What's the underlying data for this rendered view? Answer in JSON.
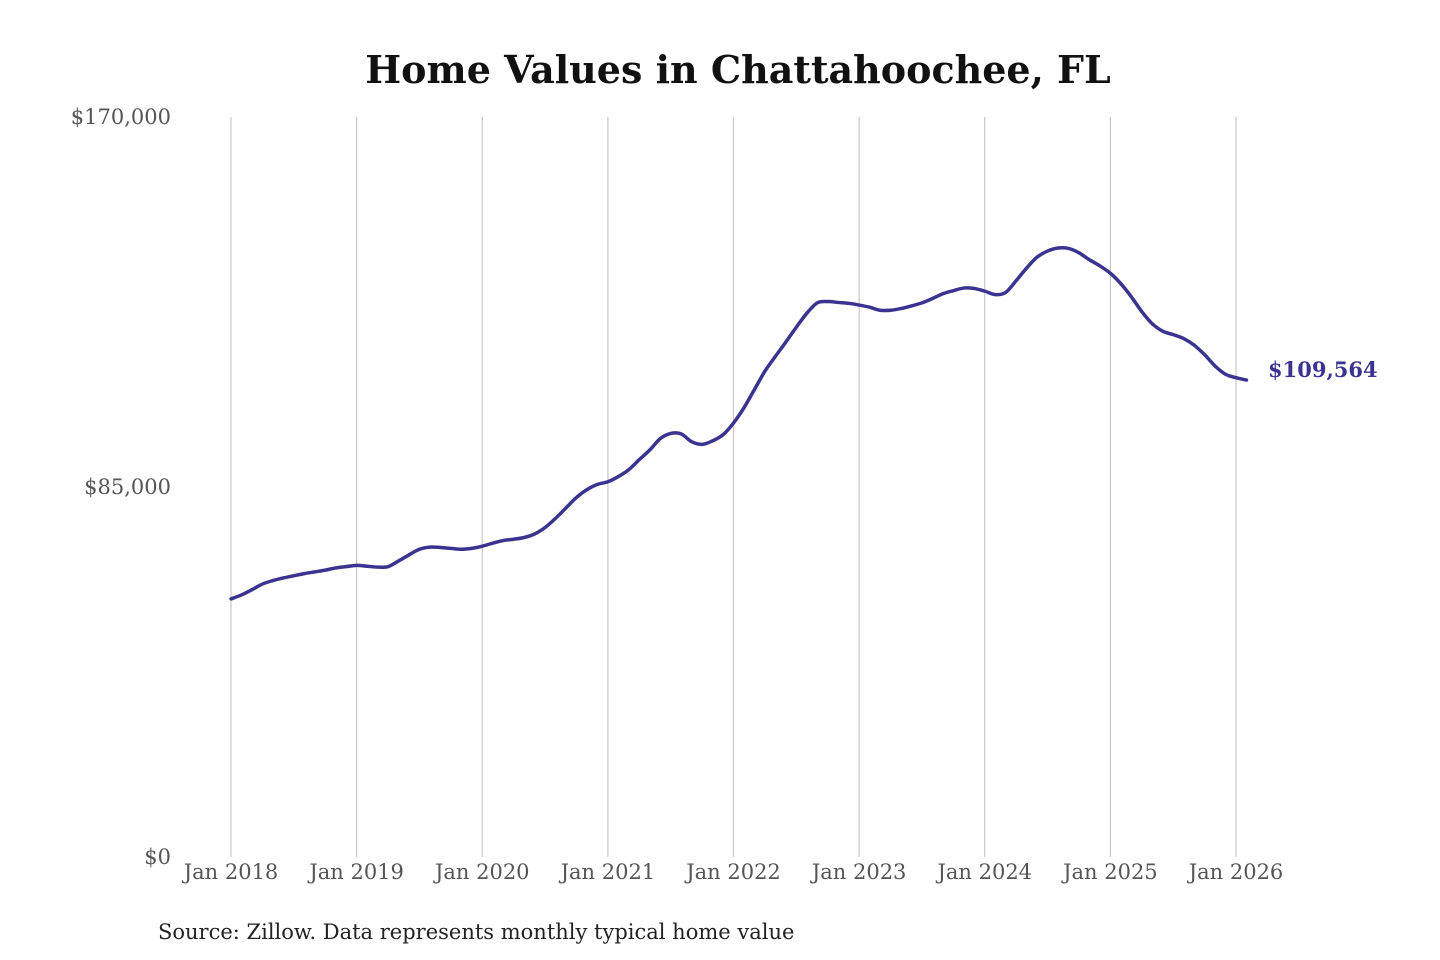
{
  "colors": {
    "line": "#3a3490",
    "grid": "#c8c8c8",
    "text": "#555555",
    "title": "#111111"
  },
  "chart_data": {
    "type": "line",
    "title": "Home Values in Chattahoochee, FL",
    "xlabel": "",
    "ylabel": "",
    "ylim": [
      0,
      170000
    ],
    "y_ticks": [
      {
        "value": 0,
        "label": "$0"
      },
      {
        "value": 85000,
        "label": "$85,000"
      },
      {
        "value": 170000,
        "label": "$170,000"
      }
    ],
    "x_ticks": [
      {
        "value": "2018-01",
        "label": "Jan 2018"
      },
      {
        "value": "2019-01",
        "label": "Jan 2019"
      },
      {
        "value": "2020-01",
        "label": "Jan 2020"
      },
      {
        "value": "2021-01",
        "label": "Jan 2021"
      },
      {
        "value": "2022-01",
        "label": "Jan 2022"
      },
      {
        "value": "2023-01",
        "label": "Jan 2023"
      },
      {
        "value": "2024-01",
        "label": "Jan 2024"
      },
      {
        "value": "2025-01",
        "label": "Jan 2025"
      },
      {
        "value": "2026-01",
        "label": "Jan 2026"
      }
    ],
    "grid": "vertical",
    "end_label": "$109,564",
    "source": "Source: Zillow. Data represents monthly typical home value",
    "series": [
      {
        "x": [
          "2018-01",
          "2018-02",
          "2018-03",
          "2018-04",
          "2018-05",
          "2018-06",
          "2018-07",
          "2018-08",
          "2018-09",
          "2018-10",
          "2018-11",
          "2018-12",
          "2019-01",
          "2019-02",
          "2019-03",
          "2019-04",
          "2019-05",
          "2019-06",
          "2019-07",
          "2019-08",
          "2019-09",
          "2019-10",
          "2019-11",
          "2019-12",
          "2020-01",
          "2020-02",
          "2020-03",
          "2020-04",
          "2020-05",
          "2020-06",
          "2020-07",
          "2020-08",
          "2020-09",
          "2020-10",
          "2020-11",
          "2020-12",
          "2021-01",
          "2021-02",
          "2021-03",
          "2021-04",
          "2021-05",
          "2021-06",
          "2021-07",
          "2021-08",
          "2021-09",
          "2021-10",
          "2021-11",
          "2021-12",
          "2022-01",
          "2022-02",
          "2022-03",
          "2022-04",
          "2022-05",
          "2022-06",
          "2022-07",
          "2022-08",
          "2022-09",
          "2022-10",
          "2022-11",
          "2022-12",
          "2023-01",
          "2023-02",
          "2023-03",
          "2023-04",
          "2023-05",
          "2023-06",
          "2023-07",
          "2023-08",
          "2023-09",
          "2023-10",
          "2023-11",
          "2023-12",
          "2024-01",
          "2024-02",
          "2024-03",
          "2024-04",
          "2024-05",
          "2024-06",
          "2024-07",
          "2024-08",
          "2024-09",
          "2024-10",
          "2024-11",
          "2024-12",
          "2025-01",
          "2025-02",
          "2025-03",
          "2025-04",
          "2025-05",
          "2025-06",
          "2025-07",
          "2025-08",
          "2025-09",
          "2025-10",
          "2025-11",
          "2025-12",
          "2026-01",
          "2026-02"
        ],
        "values": [
          59300,
          60200,
          61400,
          62700,
          63500,
          64100,
          64600,
          65100,
          65500,
          65900,
          66400,
          66700,
          67000,
          66800,
          66600,
          66700,
          68000,
          69400,
          70700,
          71200,
          71100,
          70900,
          70700,
          70900,
          71400,
          72100,
          72700,
          73000,
          73400,
          74200,
          75700,
          77800,
          80200,
          82600,
          84400,
          85600,
          86200,
          87400,
          89000,
          91300,
          93500,
          96100,
          97300,
          97200,
          95400,
          94800,
          95600,
          97000,
          99700,
          103200,
          107400,
          111600,
          115000,
          118300,
          121700,
          124900,
          127300,
          127600,
          127400,
          127200,
          126800,
          126300,
          125600,
          125600,
          126000,
          126600,
          127300,
          128300,
          129400,
          130100,
          130700,
          130600,
          130000,
          129200,
          129700,
          132400,
          135300,
          137800,
          139200,
          139900,
          139800,
          138800,
          137200,
          135800,
          134100,
          131700,
          128700,
          125300,
          122500,
          120800,
          120000,
          119100,
          117600,
          115400,
          112800,
          110900,
          110100,
          109564
        ]
      }
    ]
  }
}
